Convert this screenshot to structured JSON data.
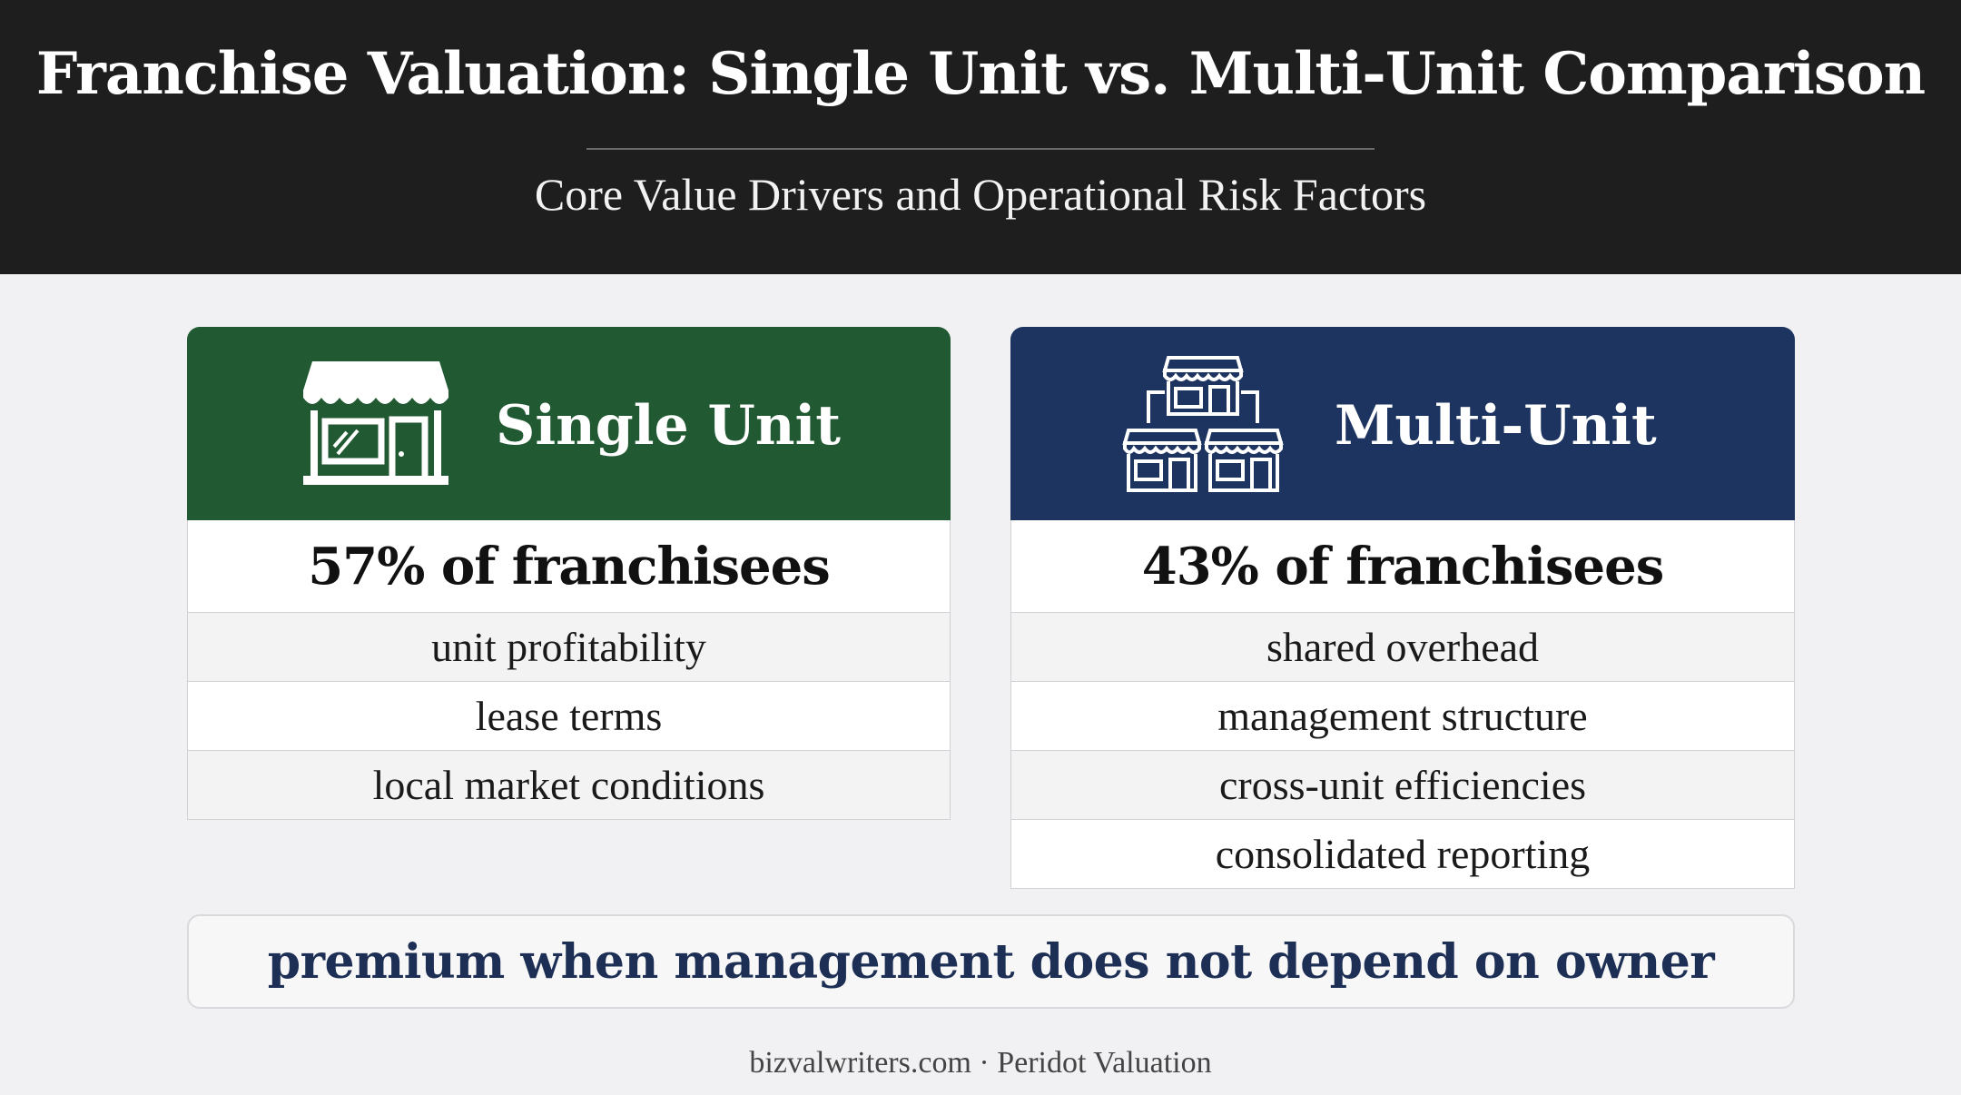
{
  "header": {
    "title": "Franchise Valuation: Single Unit vs. Multi-Unit Comparison",
    "subtitle": "Core Value Drivers and Operational Risk Factors"
  },
  "single_unit": {
    "heading": "Single Unit",
    "icon": "storefront-icon",
    "color": "#215a32",
    "stat": "57% of franchisees",
    "drivers": [
      "unit profitability",
      "lease terms",
      "local market conditions"
    ]
  },
  "multi_unit": {
    "heading": "Multi-Unit",
    "icon": "multiple-stores-icon",
    "color": "#1d3461",
    "stat": "43% of franchisees",
    "drivers": [
      "shared overhead",
      "management structure",
      "cross-unit efficiencies",
      "consolidated reporting"
    ]
  },
  "callout": "premium when management does not depend on owner",
  "footer": "bizvalwriters.com · Peridot Valuation"
}
